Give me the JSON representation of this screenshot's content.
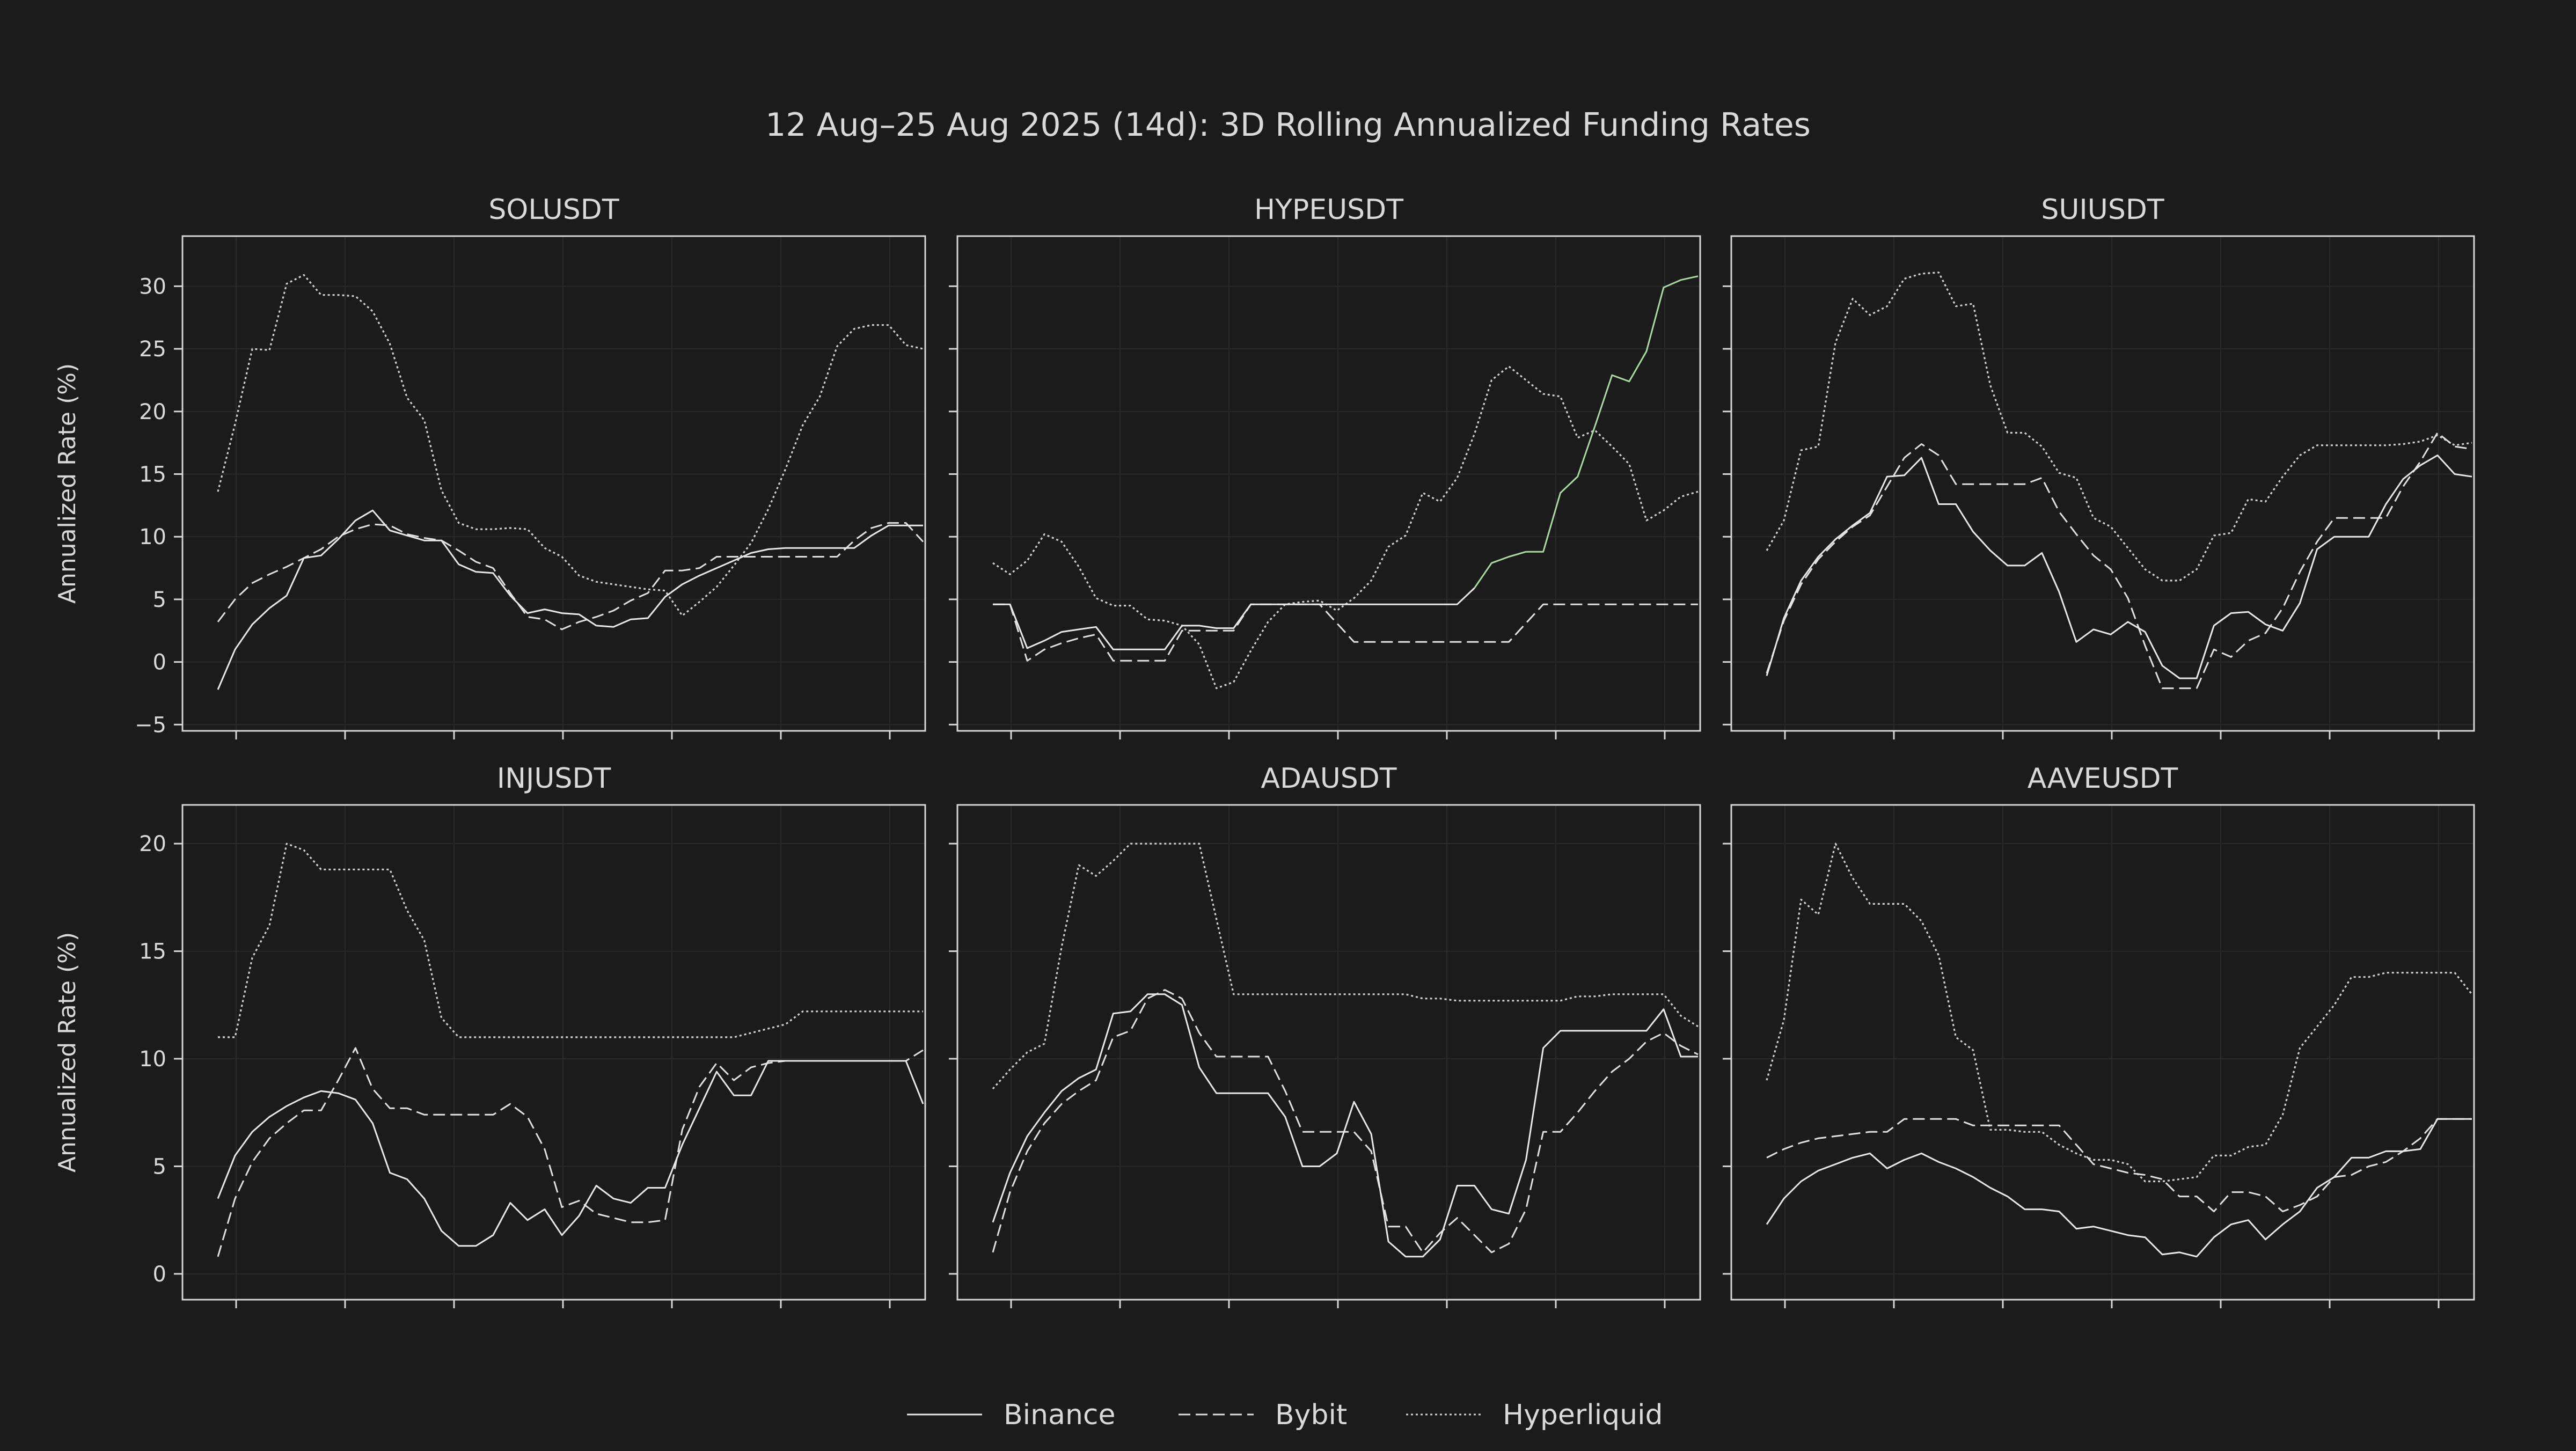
{
  "figure": {
    "title": "12 Aug–25 Aug 2025 (14d): 3D Rolling Annualized Funding Rates",
    "ylabel": "Annualized Rate (%)",
    "legend": {
      "placement": "bottom-center",
      "entries": [
        {
          "name": "Binance",
          "style": "solid"
        },
        {
          "name": "Bybit",
          "style": "dashed"
        },
        {
          "name": "Hyperliquid",
          "style": "dotted"
        }
      ]
    },
    "colors": {
      "background": "#1b1b1b",
      "axes": "#d6d6d6",
      "text": "#d9d9d9",
      "binance": "#e8e8e8",
      "bybit": "#e0e0e0",
      "hyperliquid": "#d0d0d0",
      "highlight": "#a9d9a0",
      "grid": "#2a2a2a"
    }
  },
  "chart_data": [
    {
      "type": "line",
      "title": "SOLUSDT",
      "ylabel": "Annualized Rate (%)",
      "ylim": [
        -5.5,
        34
      ],
      "yticks": [
        -5,
        0,
        5,
        10,
        15,
        20,
        25,
        30
      ],
      "grid": true,
      "x_points": 42,
      "series": [
        {
          "name": "Binance",
          "style": "solid",
          "values": [
            -2.2,
            1.0,
            3.0,
            4.3,
            5.3,
            8.3,
            8.5,
            9.8,
            11.3,
            12.1,
            10.5,
            10.1,
            9.7,
            9.7,
            7.8,
            7.2,
            7.1,
            5.3,
            3.9,
            4.2,
            3.9,
            3.8,
            2.9,
            2.8,
            3.4,
            3.5,
            5.2,
            6.2,
            6.9,
            7.5,
            8.1,
            8.7,
            9.0,
            9.1,
            9.1,
            9.1,
            9.1,
            9.1,
            10.1,
            10.9,
            10.9,
            10.9
          ]
        },
        {
          "name": "Bybit",
          "style": "dashed",
          "values": [
            3.2,
            5.0,
            6.3,
            7.0,
            7.6,
            8.3,
            9.0,
            10.0,
            10.6,
            11.0,
            10.9,
            10.2,
            9.9,
            9.7,
            8.9,
            8.0,
            7.5,
            5.5,
            3.6,
            3.4,
            2.6,
            3.2,
            3.6,
            4.1,
            4.9,
            5.5,
            7.3,
            7.3,
            7.5,
            8.4,
            8.4,
            8.4,
            8.4,
            8.4,
            8.4,
            8.4,
            8.4,
            9.7,
            10.7,
            11.1,
            11.1,
            9.6
          ]
        },
        {
          "name": "Hyperliquid",
          "style": "dotted",
          "values": [
            13.6,
            19.0,
            25.0,
            24.9,
            30.2,
            30.9,
            29.3,
            29.3,
            29.2,
            28.0,
            25.4,
            21.1,
            19.3,
            13.7,
            11.1,
            10.6,
            10.6,
            10.7,
            10.6,
            9.1,
            8.4,
            6.9,
            6.4,
            6.2,
            6.0,
            5.8,
            5.7,
            3.7,
            4.8,
            6.0,
            7.7,
            9.5,
            12.2,
            15.4,
            18.9,
            21.2,
            25.2,
            26.6,
            26.9,
            26.9,
            25.3,
            25.0
          ]
        }
      ]
    },
    {
      "type": "line",
      "title": "HYPEUSDT",
      "ylim": [
        -5.5,
        34
      ],
      "yticks": [
        -5,
        0,
        5,
        10,
        15,
        20,
        25,
        30
      ],
      "grid": true,
      "x_points": 42,
      "series": [
        {
          "name": "Binance",
          "style": "solid",
          "values": [
            4.6,
            4.6,
            1.1,
            1.7,
            2.4,
            2.6,
            2.8,
            1.0,
            1.0,
            1.0,
            1.0,
            2.9,
            2.9,
            2.7,
            2.7,
            4.6,
            4.6,
            4.6,
            4.6,
            4.6,
            4.6,
            4.6,
            4.6,
            4.6,
            4.6,
            4.6,
            4.6,
            4.6,
            5.9,
            7.9,
            8.4,
            8.8,
            8.8,
            13.5,
            14.8,
            18.8,
            22.9,
            22.4,
            24.8,
            29.9,
            30.5,
            30.8
          ],
          "highlight_from": 28
        },
        {
          "name": "Bybit",
          "style": "dashed",
          "values": [
            4.6,
            4.6,
            0.1,
            1.0,
            1.5,
            1.9,
            2.2,
            0.1,
            0.1,
            0.1,
            0.1,
            2.5,
            2.5,
            2.5,
            2.5,
            4.6,
            4.6,
            4.6,
            4.6,
            4.6,
            3.1,
            1.6,
            1.6,
            1.6,
            1.6,
            1.6,
            1.6,
            1.6,
            1.6,
            1.6,
            1.6,
            3.1,
            4.6,
            4.6,
            4.6,
            4.6,
            4.6,
            4.6,
            4.6,
            4.6,
            4.6,
            4.6
          ]
        },
        {
          "name": "Hyperliquid",
          "style": "dotted",
          "values": [
            7.9,
            7.0,
            8.1,
            10.2,
            9.6,
            7.6,
            5.1,
            4.5,
            4.5,
            3.4,
            3.3,
            2.9,
            1.4,
            -2.1,
            -1.6,
            0.9,
            3.2,
            4.6,
            4.8,
            4.9,
            4.1,
            5.1,
            6.5,
            9.2,
            10.1,
            13.5,
            12.8,
            14.7,
            18.2,
            22.5,
            23.6,
            22.5,
            21.4,
            21.2,
            17.9,
            18.5,
            17.2,
            15.8,
            11.3,
            12.1,
            13.2,
            13.6
          ]
        }
      ]
    },
    {
      "type": "line",
      "title": "SUIUSDT",
      "ylim": [
        -5.5,
        34
      ],
      "yticks": [
        -5,
        0,
        5,
        10,
        15,
        20,
        25,
        30
      ],
      "grid": true,
      "x_points": 42,
      "series": [
        {
          "name": "Binance",
          "style": "solid",
          "values": [
            -1.1,
            3.5,
            6.5,
            8.4,
            9.8,
            10.9,
            11.9,
            14.8,
            14.9,
            16.3,
            12.6,
            12.6,
            10.4,
            8.9,
            7.7,
            7.7,
            8.7,
            5.6,
            1.6,
            2.6,
            2.2,
            3.2,
            2.4,
            -0.3,
            -1.3,
            -1.3,
            2.9,
            3.9,
            4.0,
            3.0,
            2.5,
            4.7,
            9.0,
            10.0,
            10.0,
            10.0,
            12.6,
            14.6,
            15.7,
            16.5,
            15.0,
            14.8
          ]
        },
        {
          "name": "Bybit",
          "style": "dashed",
          "values": [
            -0.9,
            3.3,
            6.2,
            8.2,
            9.6,
            10.8,
            11.7,
            14.0,
            16.3,
            17.4,
            16.5,
            14.2,
            14.2,
            14.2,
            14.2,
            14.2,
            14.7,
            12.0,
            10.2,
            8.5,
            7.4,
            5.1,
            1.3,
            -2.1,
            -2.1,
            -2.1,
            1.0,
            0.4,
            1.7,
            2.3,
            4.3,
            7.2,
            9.6,
            11.5,
            11.5,
            11.5,
            11.5,
            14.0,
            16.0,
            18.3,
            17.2,
            17.0
          ]
        },
        {
          "name": "Hyperliquid",
          "style": "dotted",
          "values": [
            8.9,
            11.3,
            16.9,
            17.2,
            25.5,
            29.0,
            27.7,
            28.4,
            30.6,
            31.0,
            31.1,
            28.4,
            28.6,
            22.1,
            18.3,
            18.3,
            17.2,
            15.1,
            14.7,
            11.5,
            10.8,
            9.1,
            7.4,
            6.5,
            6.5,
            7.4,
            10.1,
            10.3,
            13.0,
            12.8,
            14.8,
            16.5,
            17.3,
            17.3,
            17.3,
            17.3,
            17.3,
            17.4,
            17.6,
            18.1,
            17.3,
            17.5
          ]
        }
      ]
    },
    {
      "type": "line",
      "title": "INJUSDT",
      "ylabel": "Annualized Rate (%)",
      "ylim": [
        -1.2,
        21.8
      ],
      "yticks": [
        0,
        5,
        10,
        15,
        20
      ],
      "grid": true,
      "x_points": 42,
      "series": [
        {
          "name": "Binance",
          "style": "solid",
          "values": [
            3.5,
            5.5,
            6.6,
            7.3,
            7.8,
            8.2,
            8.5,
            8.4,
            8.1,
            7.0,
            4.7,
            4.4,
            3.5,
            2.0,
            1.3,
            1.3,
            1.8,
            3.3,
            2.5,
            3.0,
            1.8,
            2.7,
            4.1,
            3.5,
            3.3,
            4.0,
            4.0,
            6.0,
            7.7,
            9.4,
            8.3,
            8.3,
            9.9,
            9.9,
            9.9,
            9.9,
            9.9,
            9.9,
            9.9,
            9.9,
            9.9,
            7.9
          ]
        },
        {
          "name": "Bybit",
          "style": "dashed",
          "values": [
            0.8,
            3.5,
            5.2,
            6.3,
            7.0,
            7.6,
            7.6,
            9.0,
            10.5,
            8.6,
            7.7,
            7.7,
            7.4,
            7.4,
            7.4,
            7.4,
            7.4,
            7.9,
            7.3,
            5.8,
            3.1,
            3.4,
            2.8,
            2.6,
            2.4,
            2.4,
            2.5,
            6.7,
            8.7,
            9.8,
            9.0,
            9.6,
            9.8,
            9.9,
            9.9,
            9.9,
            9.9,
            9.9,
            9.9,
            9.9,
            9.9,
            10.4
          ]
        },
        {
          "name": "Hyperliquid",
          "style": "dotted",
          "values": [
            11.0,
            11.0,
            14.7,
            16.2,
            20.0,
            19.7,
            18.8,
            18.8,
            18.8,
            18.8,
            18.8,
            16.9,
            15.5,
            11.9,
            11.0,
            11.0,
            11.0,
            11.0,
            11.0,
            11.0,
            11.0,
            11.0,
            11.0,
            11.0,
            11.0,
            11.0,
            11.0,
            11.0,
            11.0,
            11.0,
            11.0,
            11.2,
            11.4,
            11.6,
            12.2,
            12.2,
            12.2,
            12.2,
            12.2,
            12.2,
            12.2,
            12.2
          ]
        }
      ]
    },
    {
      "type": "line",
      "title": "ADAUSDT",
      "ylim": [
        -1.2,
        21.8
      ],
      "yticks": [
        0,
        5,
        10,
        15,
        20
      ],
      "grid": true,
      "x_points": 42,
      "series": [
        {
          "name": "Binance",
          "style": "solid",
          "values": [
            2.4,
            4.7,
            6.4,
            7.5,
            8.5,
            9.1,
            9.5,
            12.1,
            12.2,
            13.0,
            13.0,
            12.5,
            9.6,
            8.4,
            8.4,
            8.4,
            8.4,
            7.3,
            5.0,
            5.0,
            5.6,
            8.0,
            6.5,
            1.5,
            0.8,
            0.8,
            1.6,
            4.1,
            4.1,
            3.0,
            2.8,
            5.3,
            10.5,
            11.3,
            11.3,
            11.3,
            11.3,
            11.3,
            11.3,
            12.3,
            10.1,
            10.1
          ]
        },
        {
          "name": "Bybit",
          "style": "dashed",
          "values": [
            1.0,
            3.8,
            5.7,
            7.0,
            7.9,
            8.5,
            9.0,
            11.0,
            11.3,
            12.8,
            13.2,
            12.8,
            11.2,
            10.1,
            10.1,
            10.1,
            10.1,
            8.5,
            6.6,
            6.6,
            6.6,
            6.6,
            5.7,
            2.2,
            2.2,
            1.0,
            1.9,
            2.6,
            1.8,
            1.0,
            1.4,
            3.0,
            6.6,
            6.6,
            7.5,
            8.5,
            9.4,
            10.0,
            10.8,
            11.2,
            10.6,
            10.2
          ]
        },
        {
          "name": "Hyperliquid",
          "style": "dotted",
          "values": [
            8.6,
            9.5,
            10.3,
            10.7,
            15.2,
            19.0,
            18.5,
            19.2,
            20.0,
            20.0,
            20.0,
            20.0,
            20.0,
            16.5,
            13.0,
            13.0,
            13.0,
            13.0,
            13.0,
            13.0,
            13.0,
            13.0,
            13.0,
            13.0,
            13.0,
            12.8,
            12.8,
            12.7,
            12.7,
            12.7,
            12.7,
            12.7,
            12.7,
            12.7,
            12.9,
            12.9,
            13.0,
            13.0,
            13.0,
            13.0,
            12.0,
            11.5
          ]
        }
      ]
    },
    {
      "type": "line",
      "title": "AAVEUSDT",
      "ylim": [
        -1.2,
        21.8
      ],
      "yticks": [
        0,
        5,
        10,
        15,
        20
      ],
      "grid": true,
      "x_points": 42,
      "series": [
        {
          "name": "Binance",
          "style": "solid",
          "values": [
            2.3,
            3.5,
            4.3,
            4.8,
            5.1,
            5.4,
            5.6,
            4.9,
            5.3,
            5.6,
            5.2,
            4.9,
            4.5,
            4.0,
            3.6,
            3.0,
            3.0,
            2.9,
            2.1,
            2.2,
            2.0,
            1.8,
            1.7,
            0.9,
            1.0,
            0.8,
            1.7,
            2.3,
            2.5,
            1.6,
            2.3,
            2.9,
            4.0,
            4.5,
            5.4,
            5.4,
            5.7,
            5.7,
            5.8,
            7.2,
            7.2,
            7.2
          ]
        },
        {
          "name": "Bybit",
          "style": "dashed",
          "values": [
            5.4,
            5.8,
            6.1,
            6.3,
            6.4,
            6.5,
            6.6,
            6.6,
            7.2,
            7.2,
            7.2,
            7.2,
            6.9,
            6.9,
            6.9,
            6.9,
            6.9,
            6.9,
            6.0,
            5.1,
            4.9,
            4.7,
            4.6,
            4.4,
            3.6,
            3.6,
            2.9,
            3.8,
            3.8,
            3.6,
            2.9,
            3.2,
            3.6,
            4.5,
            4.6,
            5.0,
            5.2,
            5.7,
            6.3,
            7.2,
            7.2,
            7.2
          ]
        },
        {
          "name": "Hyperliquid",
          "style": "dotted",
          "values": [
            9.0,
            11.8,
            17.4,
            16.7,
            20.0,
            18.4,
            17.2,
            17.2,
            17.2,
            16.4,
            14.8,
            11.0,
            10.4,
            6.7,
            6.7,
            6.6,
            6.6,
            6.0,
            5.6,
            5.3,
            5.3,
            5.1,
            4.3,
            4.3,
            4.4,
            4.5,
            5.5,
            5.5,
            5.9,
            6.0,
            7.4,
            10.5,
            11.5,
            12.5,
            13.8,
            13.8,
            14.0,
            14.0,
            14.0,
            14.0,
            14.0,
            13.0
          ]
        }
      ]
    }
  ]
}
